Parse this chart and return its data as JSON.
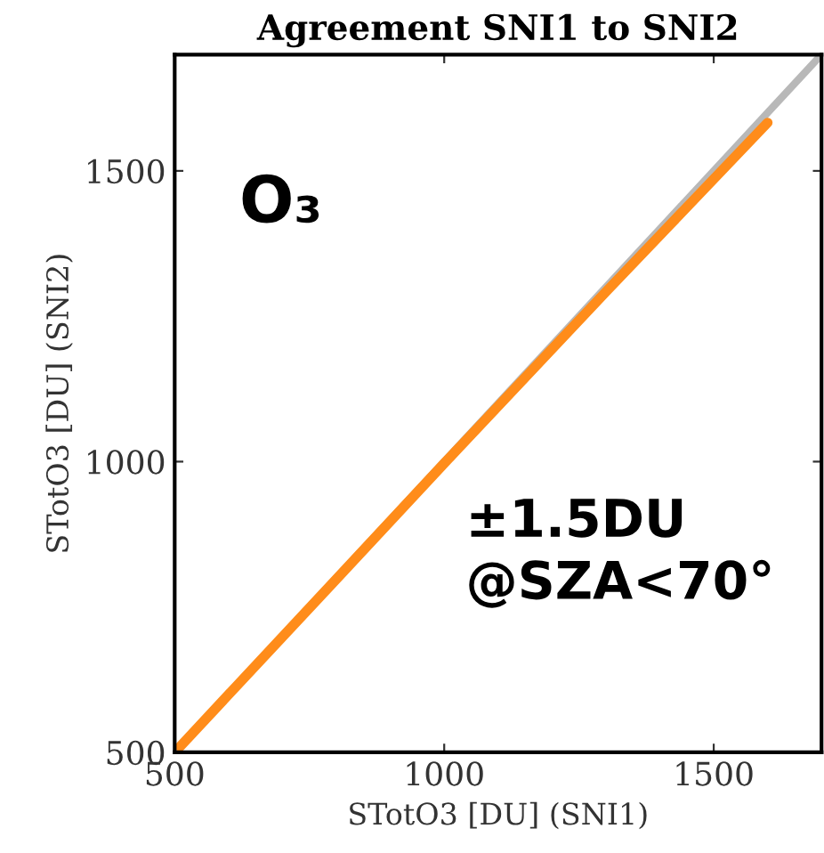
{
  "chart_data": {
    "type": "line",
    "title": "Agreement SNI1 to SNI2",
    "xlabel": "STotO3 [DU] (SNI1)",
    "ylabel": "STotO3 [DU] (SNI2)",
    "xlim": [
      500,
      1700
    ],
    "ylim": [
      500,
      1700
    ],
    "xticks": [
      500,
      1000,
      1500
    ],
    "yticks": [
      500,
      1000,
      1500
    ],
    "grid": false,
    "legend": false,
    "series": [
      {
        "color": "#b8b8b8",
        "x": [
          500,
          1700
        ],
        "values": [
          500,
          1700
        ]
      },
      {
        "color": "#ff8c1a",
        "x": [
          510,
          800,
          1000,
          1300,
          1600
        ],
        "values": [
          510,
          798,
          997,
          1292,
          1583
        ]
      }
    ],
    "annotations": [
      "O₃",
      "±1.5DU\n@SZA<70°"
    ]
  }
}
